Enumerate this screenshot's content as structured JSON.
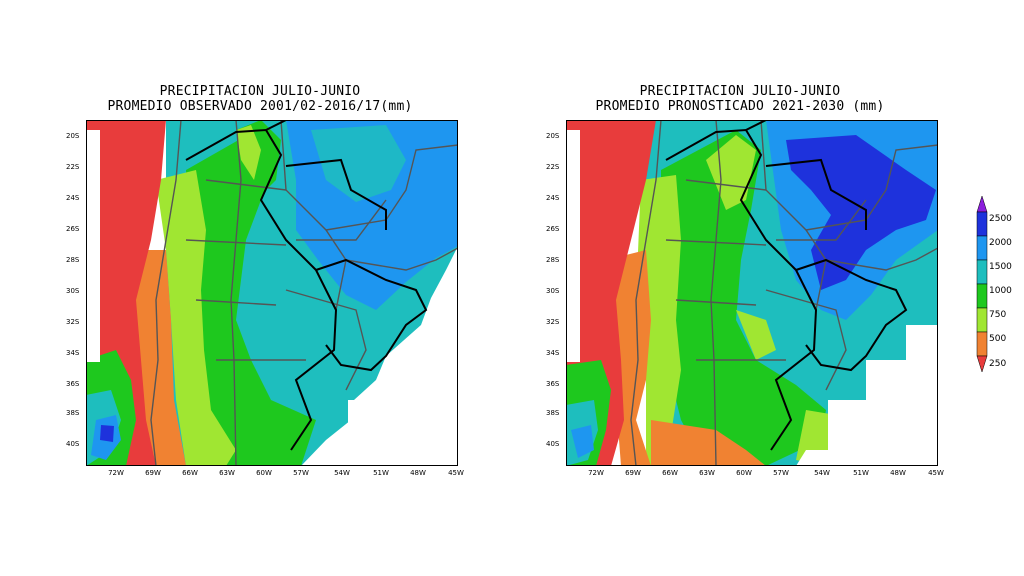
{
  "left_panel": {
    "title_line1": "PRECIPITACION JULIO-JUNIO",
    "title_line2": "PROMEDIO OBSERVADO 2001/02-2016/17(mm)"
  },
  "right_panel": {
    "title_line1": "PRECIPITACION JULIO-JUNIO",
    "title_line2": "PROMEDIO PRONOSTICADO 2021-2030 (mm)"
  },
  "axes": {
    "lat_labels": [
      "20S",
      "22S",
      "24S",
      "26S",
      "28S",
      "30S",
      "32S",
      "34S",
      "36S",
      "38S",
      "40S"
    ],
    "lon_labels": [
      "72W",
      "69W",
      "66W",
      "63W",
      "60W",
      "57W",
      "54W",
      "51W",
      "48W",
      "45W"
    ]
  },
  "legend": {
    "levels": [
      "250",
      "500",
      "750",
      "1000",
      "1500",
      "2000",
      "2500"
    ],
    "colors": [
      "#e83c3c",
      "#f08232",
      "#a0e632",
      "#1ec81e",
      "#1ebebe",
      "#1e96f0",
      "#1e32dc",
      "#8c1edc"
    ]
  }
}
